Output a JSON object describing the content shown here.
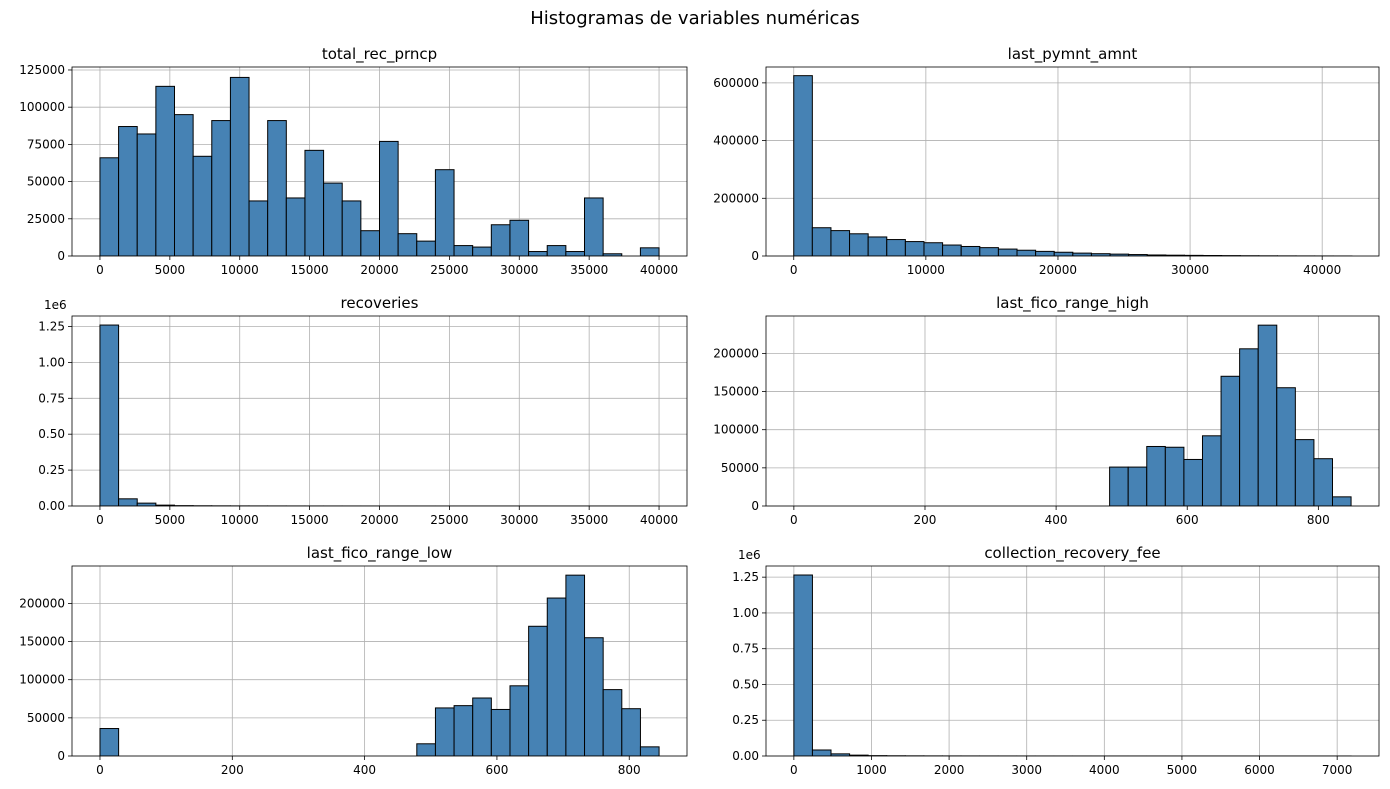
{
  "figure": {
    "suptitle": "Histogramas de variables numéricas"
  },
  "style": {
    "bar_fill": "#4682b4",
    "bar_edge": "#000000",
    "grid_color": "#b0b0b0"
  },
  "chart_data": [
    {
      "type": "bar",
      "title": "total_rec_prncp",
      "bin_start": 0,
      "bin_width": 1333.33,
      "values": [
        66000,
        87000,
        82000,
        114000,
        95000,
        67000,
        91000,
        120000,
        37000,
        91000,
        39000,
        71000,
        49000,
        37000,
        17000,
        77000,
        15000,
        10000,
        58000,
        7000,
        6000,
        21000,
        24000,
        3000,
        7000,
        3000,
        39000,
        1500,
        0,
        5500
      ],
      "xlim": [
        -2000,
        42000
      ],
      "ylim": [
        0,
        127000
      ],
      "xticks": [
        0,
        5000,
        10000,
        15000,
        20000,
        25000,
        30000,
        35000,
        40000
      ],
      "xtick_labels": [
        "0",
        "5000",
        "10000",
        "15000",
        "20000",
        "25000",
        "30000",
        "35000",
        "40000"
      ],
      "yticks": [
        0,
        25000,
        50000,
        75000,
        100000,
        125000
      ],
      "ytick_labels": [
        "0",
        "25000",
        "50000",
        "75000",
        "100000",
        "125000"
      ],
      "offset_label": ""
    },
    {
      "type": "bar",
      "title": "last_pymnt_amnt",
      "bin_start": 0,
      "bin_width": 1408.33,
      "values": [
        625000,
        98000,
        88000,
        77000,
        66000,
        57000,
        50000,
        46000,
        38000,
        33000,
        29000,
        24000,
        20000,
        16000,
        13000,
        10000,
        8000,
        6500,
        5000,
        3500,
        2800,
        2200,
        1700,
        1300,
        900,
        600,
        400,
        250,
        150,
        80
      ],
      "xlim": [
        -2100,
        44300
      ],
      "ylim": [
        0,
        655000
      ],
      "xticks": [
        0,
        10000,
        20000,
        30000,
        40000
      ],
      "xtick_labels": [
        "0",
        "10000",
        "20000",
        "30000",
        "40000"
      ],
      "yticks": [
        0,
        200000,
        400000,
        600000
      ],
      "ytick_labels": [
        "0",
        "200000",
        "400000",
        "600000"
      ],
      "offset_label": ""
    },
    {
      "type": "bar",
      "title": "recoveries",
      "bin_start": 0,
      "bin_width": 1333.33,
      "values": [
        1260000,
        50000,
        20000,
        6000,
        2500,
        1500,
        1000,
        700,
        500,
        400,
        300,
        250,
        200,
        150,
        120,
        100,
        80,
        60,
        50,
        40,
        30,
        25,
        20,
        15,
        10,
        8,
        6,
        4,
        2,
        1
      ],
      "xlim": [
        -2000,
        42000
      ],
      "ylim": [
        0,
        1323000
      ],
      "xticks": [
        0,
        5000,
        10000,
        15000,
        20000,
        25000,
        30000,
        35000,
        40000
      ],
      "xtick_labels": [
        "0",
        "5000",
        "10000",
        "15000",
        "20000",
        "25000",
        "30000",
        "35000",
        "40000"
      ],
      "yticks": [
        0,
        250000,
        500000,
        750000,
        1000000,
        1250000
      ],
      "ytick_labels": [
        "0.00",
        "0.25",
        "0.50",
        "0.75",
        "1.00",
        "1.25"
      ],
      "offset_label": "1e6"
    },
    {
      "type": "bar",
      "title": "last_fico_range_high",
      "bin_start": 0,
      "bin_width": 28.33,
      "values": [
        0,
        0,
        0,
        0,
        0,
        0,
        0,
        0,
        0,
        0,
        0,
        0,
        0,
        0,
        0,
        0,
        0,
        51000,
        51000,
        78000,
        77000,
        61000,
        92000,
        170000,
        206000,
        237000,
        155000,
        87000,
        62000,
        12000
      ],
      "xlim": [
        -42.5,
        892.5
      ],
      "ylim": [
        0,
        249000
      ],
      "xticks": [
        0,
        200,
        400,
        600,
        800
      ],
      "xtick_labels": [
        "0",
        "200",
        "400",
        "600",
        "800"
      ],
      "yticks": [
        0,
        50000,
        100000,
        150000,
        200000
      ],
      "ytick_labels": [
        "0",
        "50000",
        "100000",
        "150000",
        "200000"
      ],
      "offset_label": ""
    },
    {
      "type": "bar",
      "title": "last_fico_range_low",
      "bin_start": 0,
      "bin_width": 28.17,
      "values": [
        36000,
        0,
        0,
        0,
        0,
        0,
        0,
        0,
        0,
        0,
        0,
        0,
        0,
        0,
        0,
        0,
        0,
        16000,
        63000,
        66000,
        76000,
        61000,
        92000,
        170000,
        207000,
        237000,
        155000,
        87000,
        62000,
        12000
      ],
      "xlim": [
        -42.3,
        887.3
      ],
      "ylim": [
        0,
        249000
      ],
      "xticks": [
        0,
        200,
        400,
        600,
        800
      ],
      "xtick_labels": [
        "0",
        "200",
        "400",
        "600",
        "800"
      ],
      "yticks": [
        0,
        50000,
        100000,
        150000,
        200000
      ],
      "ytick_labels": [
        "0",
        "50000",
        "100000",
        "150000",
        "200000"
      ],
      "offset_label": ""
    },
    {
      "type": "bar",
      "title": "collection_recovery_fee",
      "bin_start": 0,
      "bin_width": 239.33,
      "values": [
        1265000,
        42000,
        15000,
        6000,
        2500,
        1500,
        1000,
        700,
        500,
        400,
        300,
        250,
        200,
        150,
        120,
        100,
        80,
        60,
        50,
        40,
        30,
        25,
        20,
        15,
        10,
        8,
        6,
        4,
        2,
        1
      ],
      "xlim": [
        -359,
        7539
      ],
      "ylim": [
        0,
        1328000
      ],
      "xticks": [
        0,
        1000,
        2000,
        3000,
        4000,
        5000,
        6000,
        7000
      ],
      "xtick_labels": [
        "0",
        "1000",
        "2000",
        "3000",
        "4000",
        "5000",
        "6000",
        "7000"
      ],
      "yticks": [
        0,
        250000,
        500000,
        750000,
        1000000,
        1250000
      ],
      "ytick_labels": [
        "0.00",
        "0.25",
        "0.50",
        "0.75",
        "1.00",
        "1.25"
      ],
      "offset_label": "1e6"
    }
  ]
}
